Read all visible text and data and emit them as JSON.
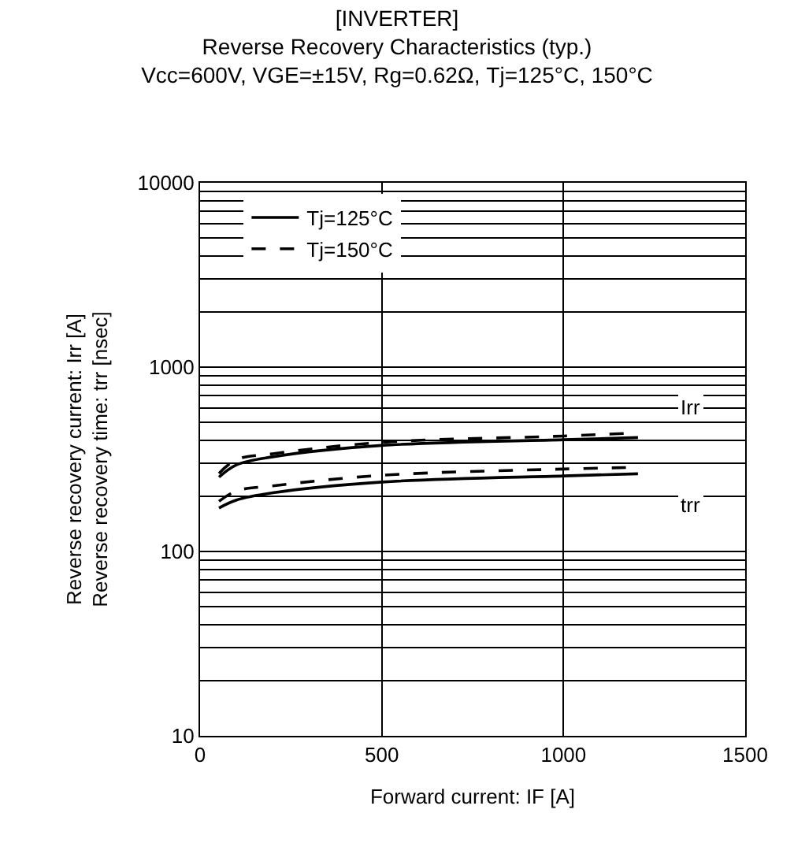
{
  "chart_data": {
    "type": "line",
    "title": "[INVERTER]",
    "subtitle": "Reverse Recovery Characteristics (typ.)\nVcc=600V, VGE=±15V, Rg=0.62Ω, Tj=125°C, 150°C",
    "xlabel": "Forward current: IF [A]",
    "ylabel": "Reverse recovery current: Irr [A]\nReverse recovery time: trr [nsec]",
    "log": "y",
    "xlim": [
      0,
      1500
    ],
    "xticks": [
      0,
      500,
      1000,
      1500
    ],
    "ylim": [
      10,
      10000
    ],
    "yticks": [
      10,
      100,
      1000,
      10000
    ],
    "grid": true,
    "legend": "top left",
    "marker": "none",
    "series": [
      {
        "name": "Tj=125°C",
        "color": "#000000",
        "line_style": "solid",
        "x": [
          52,
          100,
          200,
          500,
          1000,
          1205
        ],
        "values": [
          253,
          295,
          326,
          376,
          404,
          415
        ]
      },
      {
        "name": "Tj=150°C",
        "color": "#000000",
        "line_style": "dashed",
        "x": [
          52,
          100,
          200,
          500,
          1000,
          1205
        ],
        "values": [
          265,
          315,
          339,
          391,
          423,
          440
        ]
      },
      {
        "color": "#000000",
        "line_style": "solid",
        "x": [
          52,
          100,
          200,
          500,
          1000,
          1205
        ],
        "values": [
          172,
          190,
          208,
          238,
          257,
          264
        ]
      },
      {
        "color": "#000000",
        "line_style": "dashed",
        "x": [
          52,
          100,
          200,
          500,
          1000,
          1205
        ],
        "values": [
          187,
          213,
          227,
          259,
          280,
          286
        ]
      }
    ],
    "annotations": [
      {
        "text": "Irr",
        "x": 1350,
        "y": 600
      },
      {
        "text": "trr",
        "x": 1350,
        "y": 180
      }
    ]
  }
}
